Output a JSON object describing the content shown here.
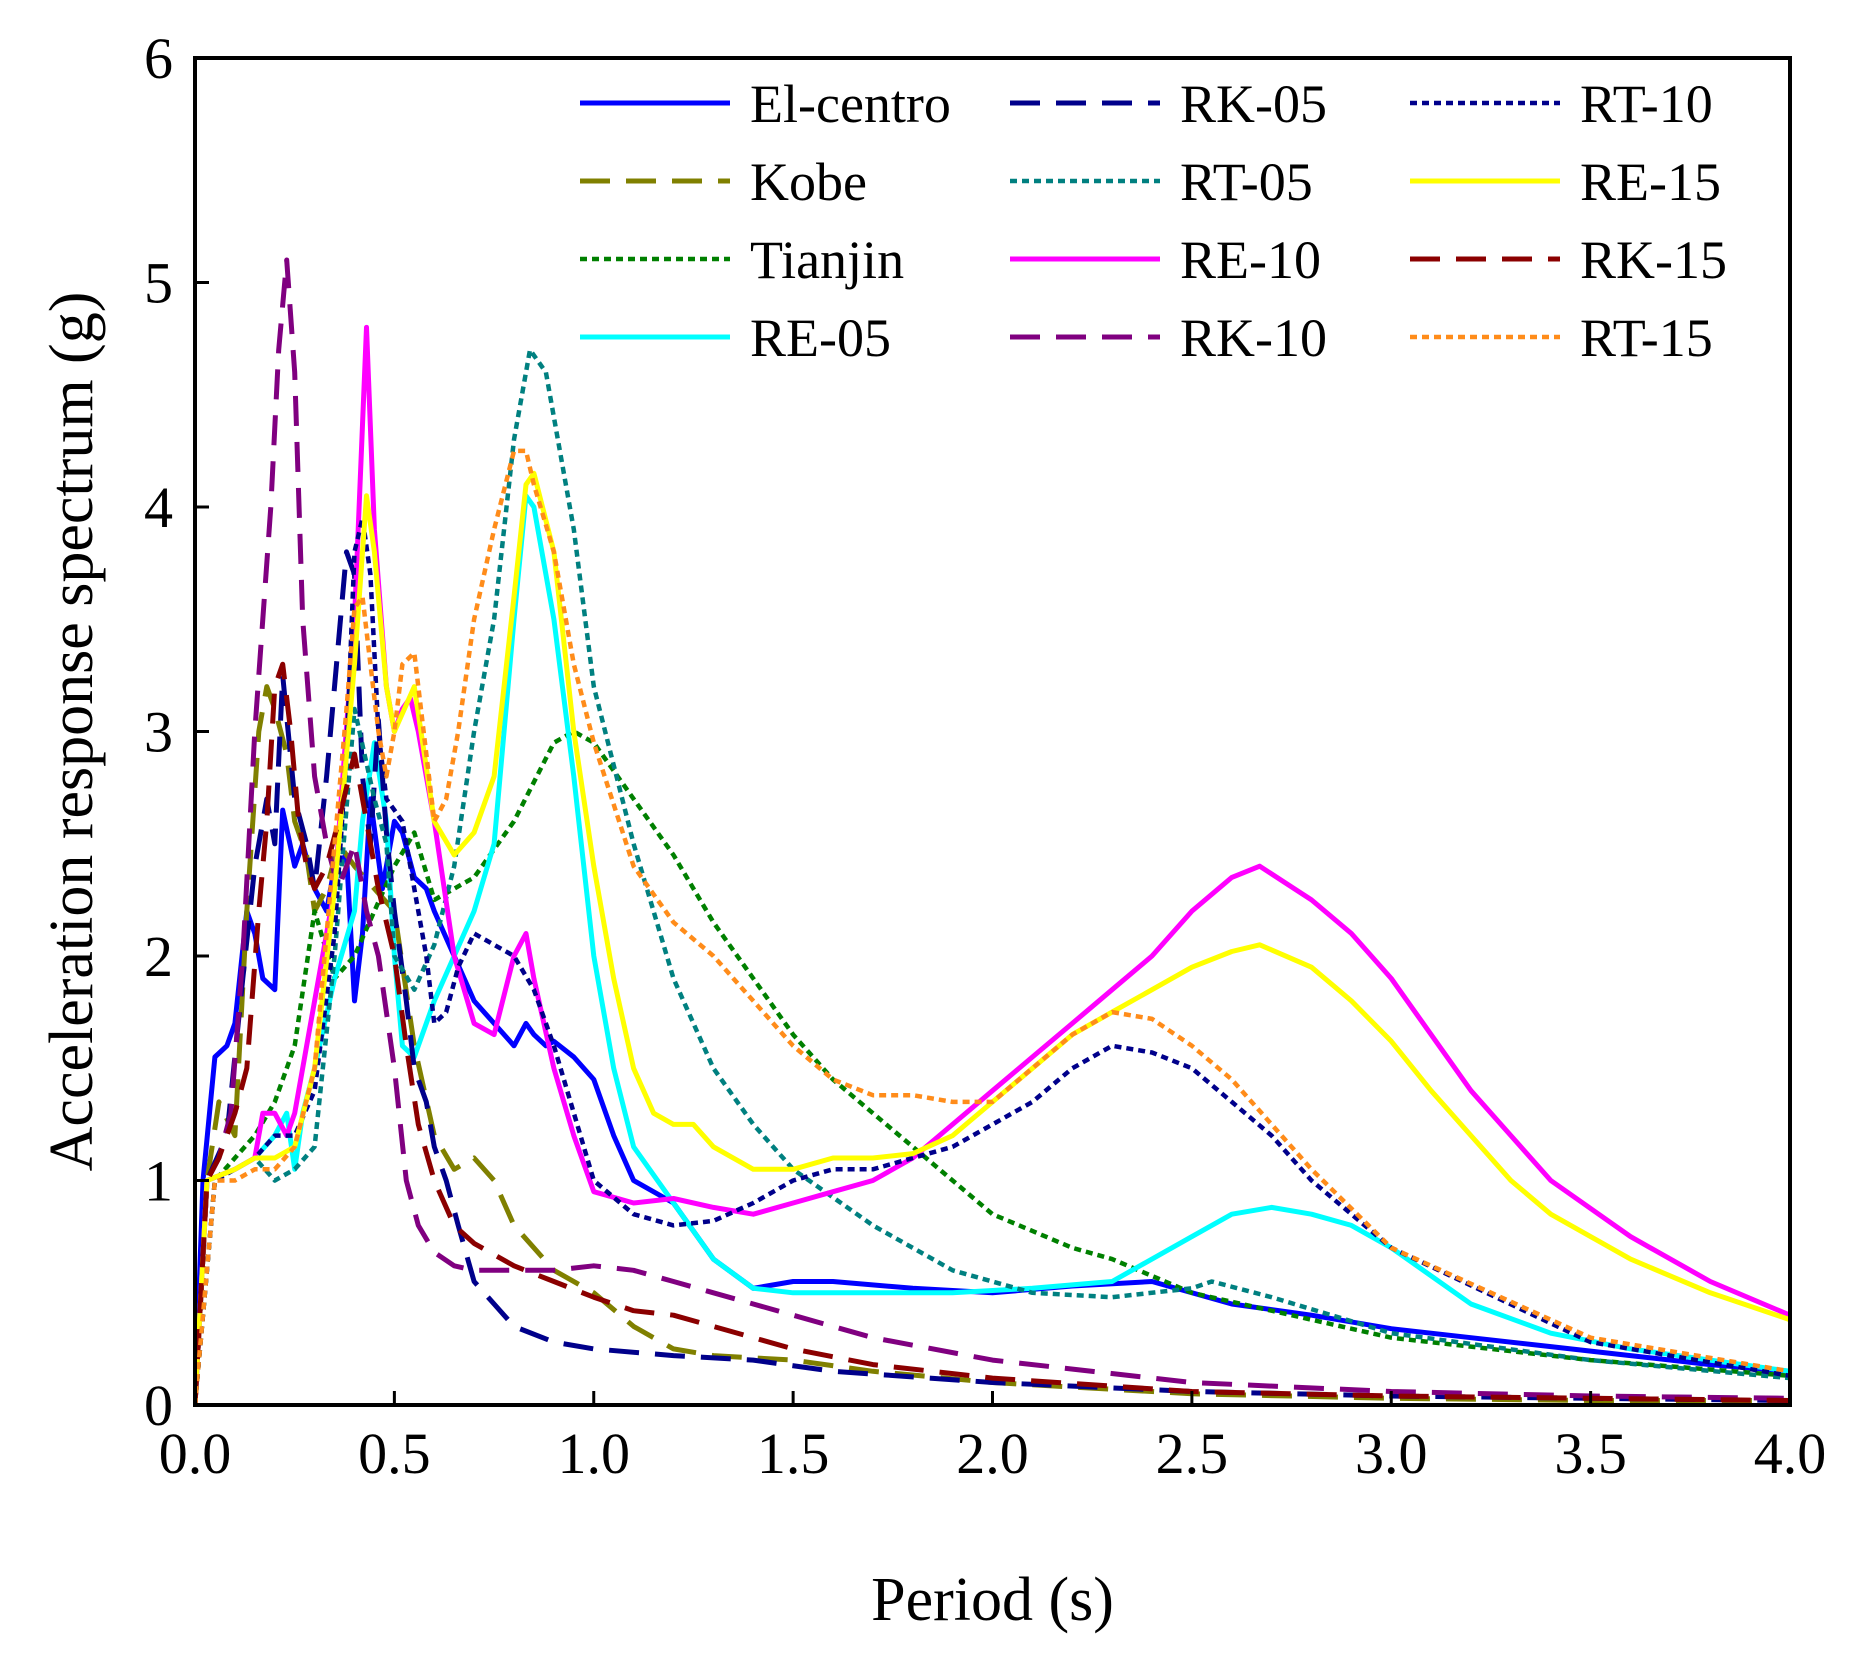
{
  "chart_data": {
    "type": "line",
    "title": "",
    "xlabel": "Period (s)",
    "ylabel": "Acceleration response spectrum (g)",
    "xlim": [
      0,
      4
    ],
    "ylim": [
      0,
      6
    ],
    "xticks": [
      "0.0",
      "0.5",
      "1.0",
      "1.5",
      "2.0",
      "2.5",
      "3.0",
      "3.5",
      "4.0"
    ],
    "yticks": [
      "0",
      "1",
      "2",
      "3",
      "4",
      "5",
      "6"
    ],
    "grid": false,
    "legend_position": "top-right",
    "series": [
      {
        "name": "El-centro",
        "color": "#0000FF",
        "dash": "solid",
        "x": [
          0,
          0.02,
          0.05,
          0.08,
          0.1,
          0.13,
          0.15,
          0.17,
          0.2,
          0.22,
          0.25,
          0.27,
          0.3,
          0.33,
          0.35,
          0.38,
          0.4,
          0.42,
          0.44,
          0.47,
          0.5,
          0.52,
          0.55,
          0.58,
          0.6,
          0.65,
          0.7,
          0.75,
          0.8,
          0.83,
          0.85,
          0.88,
          0.9,
          0.95,
          1.0,
          1.05,
          1.1,
          1.2,
          1.3,
          1.4,
          1.5,
          1.6,
          1.8,
          2.0,
          2.2,
          2.4,
          2.6,
          2.8,
          3.0,
          3.2,
          3.4,
          3.6,
          3.8,
          4.0
        ],
        "y": [
          0,
          1.0,
          1.55,
          1.6,
          1.7,
          2.2,
          2.1,
          1.9,
          1.85,
          2.65,
          2.4,
          2.5,
          2.3,
          2.2,
          2.4,
          2.45,
          1.8,
          2.1,
          2.7,
          2.3,
          2.6,
          2.55,
          2.35,
          2.3,
          2.2,
          2.0,
          1.8,
          1.7,
          1.6,
          1.7,
          1.65,
          1.6,
          1.62,
          1.55,
          1.45,
          1.2,
          1.0,
          0.9,
          0.65,
          0.52,
          0.55,
          0.55,
          0.52,
          0.5,
          0.53,
          0.55,
          0.45,
          0.4,
          0.34,
          0.3,
          0.26,
          0.22,
          0.18,
          0.15
        ]
      },
      {
        "name": "Kobe",
        "color": "#808000",
        "dash": "dashed",
        "x": [
          0,
          0.03,
          0.06,
          0.1,
          0.13,
          0.16,
          0.18,
          0.2,
          0.23,
          0.25,
          0.28,
          0.3,
          0.33,
          0.36,
          0.4,
          0.45,
          0.5,
          0.55,
          0.6,
          0.65,
          0.7,
          0.75,
          0.8,
          0.9,
          1.0,
          1.1,
          1.2,
          1.3,
          1.5,
          1.7,
          2.0,
          2.5,
          3.0,
          3.5,
          4.0
        ],
        "y": [
          0,
          1.0,
          1.35,
          1.2,
          2.2,
          3.0,
          3.2,
          3.1,
          2.9,
          2.6,
          2.45,
          2.2,
          2.3,
          2.5,
          2.4,
          2.3,
          2.2,
          1.6,
          1.2,
          1.05,
          1.1,
          1.0,
          0.8,
          0.6,
          0.5,
          0.35,
          0.25,
          0.22,
          0.2,
          0.15,
          0.1,
          0.05,
          0.03,
          0.02,
          0.02
        ]
      },
      {
        "name": "Tianjin",
        "color": "#008000",
        "dash": "dotted",
        "x": [
          0,
          0.05,
          0.1,
          0.15,
          0.2,
          0.25,
          0.3,
          0.35,
          0.4,
          0.45,
          0.5,
          0.55,
          0.6,
          0.7,
          0.8,
          0.9,
          0.95,
          1.0,
          1.1,
          1.2,
          1.3,
          1.4,
          1.5,
          1.6,
          1.7,
          1.8,
          1.9,
          2.0,
          2.2,
          2.3,
          2.5,
          2.7,
          3.0,
          3.5,
          4.0
        ],
        "y": [
          0,
          1.0,
          1.1,
          1.2,
          1.35,
          1.6,
          2.2,
          1.9,
          2.0,
          2.2,
          2.4,
          2.55,
          2.25,
          2.35,
          2.6,
          2.95,
          3.0,
          2.95,
          2.7,
          2.45,
          2.15,
          1.9,
          1.65,
          1.45,
          1.3,
          1.15,
          1.0,
          0.85,
          0.7,
          0.65,
          0.5,
          0.42,
          0.3,
          0.2,
          0.13
        ]
      },
      {
        "name": "RE-05",
        "color": "#00FFFF",
        "dash": "solid",
        "x": [
          0,
          0.03,
          0.1,
          0.15,
          0.2,
          0.23,
          0.25,
          0.27,
          0.3,
          0.35,
          0.4,
          0.42,
          0.45,
          0.48,
          0.5,
          0.52,
          0.55,
          0.6,
          0.65,
          0.7,
          0.75,
          0.8,
          0.83,
          0.85,
          0.9,
          0.95,
          1.0,
          1.05,
          1.1,
          1.2,
          1.3,
          1.4,
          1.5,
          1.7,
          1.9,
          2.1,
          2.3,
          2.5,
          2.6,
          2.7,
          2.8,
          2.9,
          3.0,
          3.2,
          3.4,
          3.6,
          3.8,
          4.0
        ],
        "y": [
          0,
          1.0,
          1.05,
          1.1,
          1.2,
          1.3,
          1.05,
          1.3,
          1.5,
          1.9,
          2.2,
          2.6,
          2.95,
          2.6,
          2.0,
          1.6,
          1.55,
          1.8,
          2.0,
          2.2,
          2.5,
          3.5,
          4.05,
          4.0,
          3.5,
          2.8,
          2.0,
          1.5,
          1.15,
          0.9,
          0.65,
          0.52,
          0.5,
          0.5,
          0.5,
          0.52,
          0.55,
          0.75,
          0.85,
          0.88,
          0.85,
          0.8,
          0.7,
          0.45,
          0.32,
          0.25,
          0.2,
          0.15
        ]
      },
      {
        "name": "RK-05",
        "color": "#00008B",
        "dash": "dashed",
        "x": [
          0,
          0.03,
          0.08,
          0.12,
          0.15,
          0.18,
          0.2,
          0.22,
          0.25,
          0.28,
          0.3,
          0.33,
          0.36,
          0.38,
          0.4,
          0.42,
          0.44,
          0.46,
          0.48,
          0.5,
          0.53,
          0.55,
          0.58,
          0.6,
          0.63,
          0.66,
          0.7,
          0.75,
          0.8,
          0.9,
          1.0,
          1.2,
          1.4,
          1.6,
          2.0,
          2.5,
          3.0,
          3.5,
          4.0
        ],
        "y": [
          0,
          1.0,
          1.2,
          1.9,
          2.4,
          2.7,
          2.5,
          3.25,
          2.7,
          2.5,
          2.3,
          2.8,
          3.4,
          3.8,
          3.7,
          2.8,
          2.5,
          3.05,
          2.55,
          2.2,
          1.8,
          1.5,
          1.35,
          1.15,
          1.0,
          0.8,
          0.55,
          0.45,
          0.35,
          0.28,
          0.25,
          0.22,
          0.2,
          0.15,
          0.1,
          0.06,
          0.04,
          0.03,
          0.02
        ]
      },
      {
        "name": "RT-05",
        "color": "#008080",
        "dash": "dotted",
        "x": [
          0,
          0.05,
          0.1,
          0.15,
          0.2,
          0.25,
          0.3,
          0.35,
          0.4,
          0.45,
          0.48,
          0.5,
          0.55,
          0.6,
          0.65,
          0.7,
          0.75,
          0.8,
          0.84,
          0.88,
          0.9,
          0.95,
          1.0,
          1.1,
          1.2,
          1.3,
          1.4,
          1.5,
          1.7,
          1.9,
          2.1,
          2.3,
          2.5,
          2.55,
          2.7,
          3.0,
          3.5,
          4.0
        ],
        "y": [
          0,
          1.0,
          1.05,
          1.1,
          1.0,
          1.05,
          1.15,
          2.0,
          3.1,
          2.7,
          2.5,
          2.0,
          1.85,
          2.05,
          2.4,
          3.0,
          3.5,
          4.3,
          4.7,
          4.6,
          4.4,
          3.9,
          3.2,
          2.5,
          1.9,
          1.5,
          1.25,
          1.05,
          0.8,
          0.6,
          0.5,
          0.48,
          0.52,
          0.55,
          0.48,
          0.32,
          0.2,
          0.12
        ]
      },
      {
        "name": "RE-10",
        "color": "#FF00FF",
        "dash": "solid",
        "x": [
          0,
          0.03,
          0.1,
          0.15,
          0.17,
          0.2,
          0.23,
          0.25,
          0.3,
          0.35,
          0.4,
          0.43,
          0.45,
          0.48,
          0.5,
          0.52,
          0.54,
          0.56,
          0.6,
          0.65,
          0.7,
          0.75,
          0.8,
          0.83,
          0.85,
          0.9,
          0.95,
          1.0,
          1.1,
          1.2,
          1.3,
          1.4,
          1.5,
          1.6,
          1.7,
          1.8,
          1.9,
          2.0,
          2.1,
          2.2,
          2.3,
          2.4,
          2.5,
          2.6,
          2.67,
          2.8,
          2.9,
          3.0,
          3.1,
          3.2,
          3.3,
          3.4,
          3.6,
          3.8,
          4.0
        ],
        "y": [
          0,
          1.0,
          1.05,
          1.1,
          1.3,
          1.3,
          1.2,
          1.3,
          1.8,
          2.3,
          3.5,
          4.8,
          3.9,
          3.2,
          3.0,
          3.1,
          3.15,
          3.0,
          2.6,
          2.0,
          1.7,
          1.65,
          2.0,
          2.1,
          1.9,
          1.5,
          1.2,
          0.95,
          0.9,
          0.92,
          0.88,
          0.85,
          0.9,
          0.95,
          1.0,
          1.1,
          1.25,
          1.4,
          1.55,
          1.7,
          1.85,
          2.0,
          2.2,
          2.35,
          2.4,
          2.25,
          2.1,
          1.9,
          1.65,
          1.4,
          1.2,
          1.0,
          0.75,
          0.55,
          0.4
        ]
      },
      {
        "name": "RK-10",
        "color": "#800080",
        "dash": "dashed",
        "x": [
          0,
          0.03,
          0.06,
          0.09,
          0.12,
          0.15,
          0.17,
          0.19,
          0.21,
          0.23,
          0.25,
          0.27,
          0.3,
          0.33,
          0.36,
          0.4,
          0.43,
          0.46,
          0.5,
          0.53,
          0.56,
          0.6,
          0.65,
          0.7,
          0.8,
          0.9,
          1.0,
          1.1,
          1.2,
          1.3,
          1.5,
          1.7,
          2.0,
          2.5,
          3.0,
          3.5,
          4.0
        ],
        "y": [
          0,
          1.0,
          1.1,
          1.3,
          2.0,
          3.0,
          3.5,
          4.0,
          4.7,
          5.1,
          4.6,
          3.5,
          2.8,
          2.5,
          2.3,
          2.5,
          2.2,
          2.0,
          1.5,
          1.0,
          0.8,
          0.68,
          0.62,
          0.6,
          0.6,
          0.6,
          0.62,
          0.6,
          0.55,
          0.5,
          0.4,
          0.3,
          0.2,
          0.1,
          0.06,
          0.04,
          0.03
        ]
      },
      {
        "name": "RT-10",
        "color": "#00008B",
        "dash": "dotted",
        "x": [
          0,
          0.05,
          0.1,
          0.15,
          0.2,
          0.25,
          0.3,
          0.35,
          0.38,
          0.4,
          0.42,
          0.44,
          0.46,
          0.48,
          0.5,
          0.52,
          0.55,
          0.58,
          0.6,
          0.63,
          0.66,
          0.7,
          0.75,
          0.8,
          0.85,
          0.9,
          1.0,
          1.1,
          1.2,
          1.3,
          1.4,
          1.5,
          1.6,
          1.7,
          1.8,
          1.9,
          2.0,
          2.1,
          2.2,
          2.3,
          2.4,
          2.5,
          2.6,
          2.7,
          2.8,
          3.0,
          3.5,
          4.0
        ],
        "y": [
          0,
          1.0,
          1.05,
          1.1,
          1.2,
          1.2,
          1.4,
          2.1,
          2.9,
          3.8,
          3.95,
          3.7,
          3.0,
          2.7,
          2.65,
          2.6,
          2.3,
          2.0,
          1.7,
          1.75,
          1.95,
          2.1,
          2.05,
          2.0,
          1.85,
          1.6,
          1.0,
          0.85,
          0.8,
          0.82,
          0.9,
          1.0,
          1.05,
          1.05,
          1.1,
          1.15,
          1.25,
          1.35,
          1.5,
          1.6,
          1.57,
          1.5,
          1.35,
          1.2,
          1.0,
          0.7,
          0.28,
          0.13
        ]
      },
      {
        "name": "RE-15",
        "color": "#FFFF00",
        "dash": "solid",
        "x": [
          0,
          0.03,
          0.1,
          0.15,
          0.2,
          0.25,
          0.3,
          0.35,
          0.4,
          0.43,
          0.45,
          0.48,
          0.5,
          0.55,
          0.6,
          0.65,
          0.7,
          0.75,
          0.8,
          0.83,
          0.85,
          0.9,
          0.95,
          1.0,
          1.05,
          1.1,
          1.15,
          1.2,
          1.25,
          1.3,
          1.4,
          1.5,
          1.6,
          1.7,
          1.8,
          1.9,
          2.0,
          2.1,
          2.2,
          2.3,
          2.4,
          2.5,
          2.6,
          2.67,
          2.8,
          2.9,
          3.0,
          3.1,
          3.2,
          3.3,
          3.4,
          3.6,
          3.8,
          4.0
        ],
        "y": [
          0,
          1.0,
          1.05,
          1.1,
          1.1,
          1.15,
          1.5,
          2.3,
          3.3,
          4.05,
          3.8,
          3.2,
          3.0,
          3.2,
          2.6,
          2.45,
          2.55,
          2.8,
          3.6,
          4.1,
          4.15,
          3.8,
          3.0,
          2.4,
          1.9,
          1.5,
          1.3,
          1.25,
          1.25,
          1.15,
          1.05,
          1.05,
          1.1,
          1.1,
          1.12,
          1.2,
          1.35,
          1.5,
          1.65,
          1.75,
          1.85,
          1.95,
          2.02,
          2.05,
          1.95,
          1.8,
          1.62,
          1.4,
          1.2,
          1.0,
          0.85,
          0.65,
          0.5,
          0.38
        ]
      },
      {
        "name": "RK-15",
        "color": "#8B0000",
        "dash": "dashed",
        "x": [
          0,
          0.03,
          0.06,
          0.1,
          0.13,
          0.16,
          0.18,
          0.2,
          0.22,
          0.24,
          0.26,
          0.28,
          0.3,
          0.33,
          0.36,
          0.4,
          0.43,
          0.46,
          0.5,
          0.53,
          0.56,
          0.6,
          0.65,
          0.7,
          0.8,
          0.9,
          1.0,
          1.1,
          1.2,
          1.3,
          1.5,
          1.7,
          2.0,
          2.5,
          3.0,
          3.5,
          4.0
        ],
        "y": [
          0,
          1.0,
          1.1,
          1.3,
          1.5,
          2.2,
          2.6,
          3.2,
          3.3,
          3.0,
          2.6,
          2.4,
          2.3,
          2.4,
          2.6,
          2.9,
          2.6,
          2.3,
          2.0,
          1.6,
          1.25,
          1.0,
          0.8,
          0.72,
          0.62,
          0.55,
          0.48,
          0.42,
          0.4,
          0.35,
          0.25,
          0.18,
          0.12,
          0.06,
          0.04,
          0.03,
          0.02
        ]
      },
      {
        "name": "RT-15",
        "color": "#FF8C1A",
        "dash": "dotted",
        "x": [
          0,
          0.05,
          0.1,
          0.15,
          0.2,
          0.25,
          0.3,
          0.35,
          0.38,
          0.4,
          0.42,
          0.44,
          0.46,
          0.48,
          0.5,
          0.52,
          0.55,
          0.58,
          0.6,
          0.63,
          0.66,
          0.7,
          0.75,
          0.8,
          0.83,
          0.85,
          0.9,
          0.95,
          1.0,
          1.1,
          1.2,
          1.3,
          1.4,
          1.5,
          1.6,
          1.7,
          1.8,
          1.9,
          2.0,
          2.1,
          2.2,
          2.3,
          2.4,
          2.5,
          2.6,
          2.7,
          2.8,
          3.0,
          3.5,
          4.0
        ],
        "y": [
          0,
          1.0,
          1.0,
          1.05,
          1.05,
          1.15,
          1.5,
          2.5,
          3.1,
          3.55,
          3.6,
          3.3,
          3.0,
          2.8,
          3.0,
          3.3,
          3.35,
          2.9,
          2.6,
          2.7,
          3.0,
          3.5,
          3.9,
          4.25,
          4.25,
          4.1,
          3.8,
          3.3,
          2.95,
          2.4,
          2.15,
          2.0,
          1.8,
          1.6,
          1.45,
          1.38,
          1.38,
          1.35,
          1.35,
          1.5,
          1.65,
          1.75,
          1.72,
          1.6,
          1.45,
          1.25,
          1.05,
          0.7,
          0.3,
          0.15
        ]
      }
    ]
  }
}
